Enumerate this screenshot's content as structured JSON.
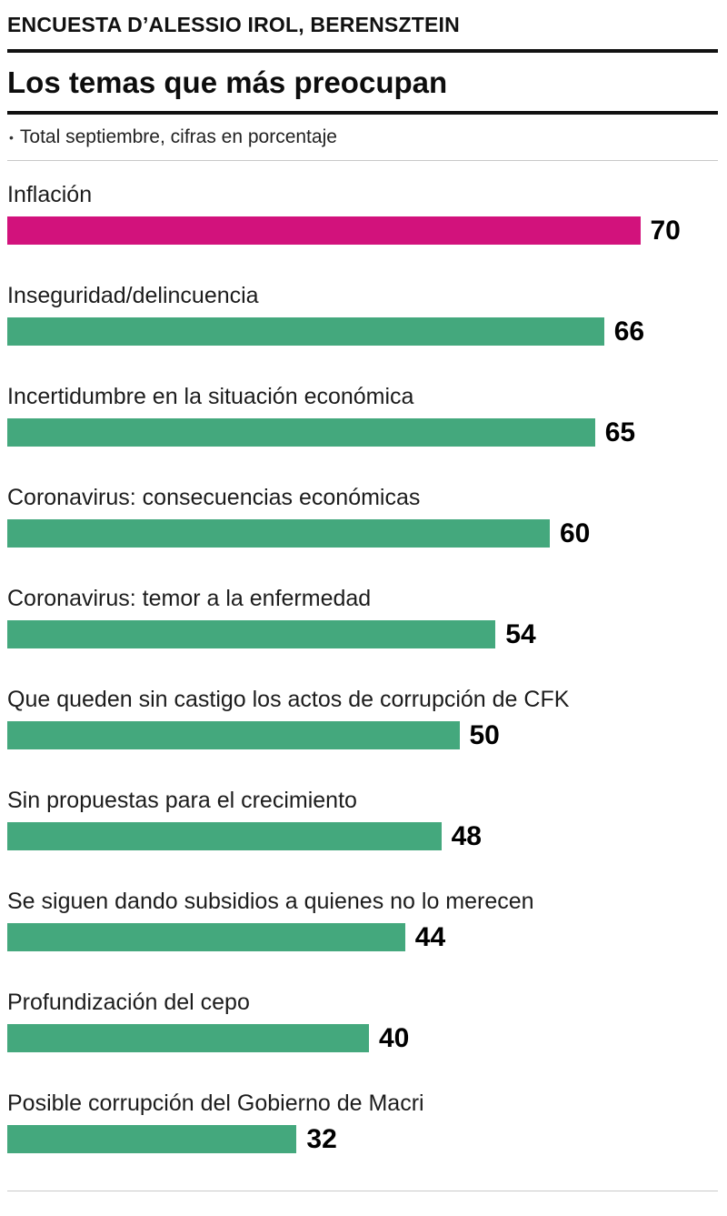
{
  "header": {
    "kicker": "ENCUESTA D’ALESSIO IROL, BERENSZTEIN",
    "title": "Los temas que más preocupan",
    "bullet": "•",
    "subtitle": "Total septiembre, cifras en porcentaje"
  },
  "colors": {
    "highlight": "#d2127c",
    "default": "#44a87d"
  },
  "chart_data": {
    "type": "bar",
    "orientation": "horizontal",
    "title": "Los temas que más preocupan",
    "subtitle": "Total septiembre, cifras en porcentaje",
    "unit": "percent",
    "xlim": [
      0,
      70
    ],
    "grid": false,
    "legend": false,
    "categories": [
      "Inflación",
      "Inseguridad/delincuencia",
      "Incertidumbre en la situación económica",
      "Coronavirus: consecuencias económicas",
      "Coronavirus: temor a la enfermedad",
      "Que queden sin castigo los actos de corrupción de CFK",
      "Sin propuestas para el crecimiento",
      "Se siguen dando subsidios a quienes no lo merecen",
      "Profundización del cepo",
      "Posible corrupción del Gobierno de Macri"
    ],
    "values": [
      70,
      66,
      65,
      60,
      54,
      50,
      48,
      44,
      40,
      32
    ],
    "bar_colors": [
      "highlight",
      "default",
      "default",
      "default",
      "default",
      "default",
      "default",
      "default",
      "default",
      "default"
    ]
  }
}
